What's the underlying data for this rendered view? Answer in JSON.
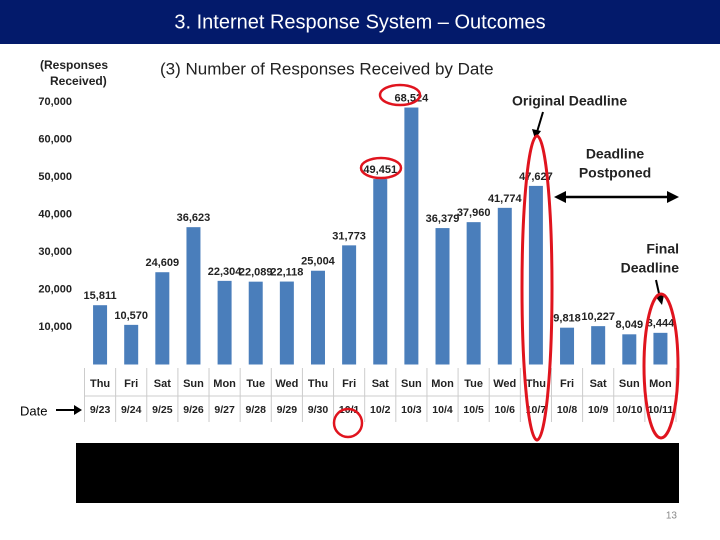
{
  "header": {
    "title": "3.  Internet Response System – Outcomes"
  },
  "chart_data": {
    "type": "bar",
    "title": "(3) Number of Responses Received by Date",
    "y_label": [
      "(Responses",
      "Received)"
    ],
    "x_label": "Date",
    "weekdays": [
      "Thu",
      "Fri",
      "Sat",
      "Sun",
      "Mon",
      "Tue",
      "Wed",
      "Thu",
      "Fri",
      "Sat",
      "Sun",
      "Mon",
      "Tue",
      "Wed",
      "Thu",
      "Fri",
      "Sat",
      "Sun",
      "Mon"
    ],
    "categories": [
      "9/23",
      "9/24",
      "9/25",
      "9/26",
      "9/27",
      "9/28",
      "9/29",
      "9/30",
      "10/1",
      "10/2",
      "10/3",
      "10/4",
      "10/5",
      "10/6",
      "10/7",
      "10/8",
      "10/9",
      "10/10",
      "10/11"
    ],
    "values": [
      15811,
      10570,
      24609,
      36623,
      22304,
      22089,
      22118,
      25004,
      31773,
      49451,
      68524,
      36379,
      37960,
      41774,
      47627,
      9818,
      10227,
      8049,
      8444
    ],
    "value_labels": [
      "15,811",
      "10,570",
      "24,609",
      "36,623",
      "22,304",
      "22,089",
      "22,118",
      "25,004",
      "31,773",
      "49,451",
      "68,524",
      "36,379",
      "37,960",
      "41,774",
      "47,627",
      "9,818",
      "10,227",
      "8,049",
      "8,444"
    ],
    "color": "#4a7ebb",
    "ylim": [
      0,
      70000
    ],
    "yticks": [
      {
        "value": 10000,
        "label": "10,000"
      },
      {
        "value": 20000,
        "label": "20,000"
      },
      {
        "value": 30000,
        "label": "30,000"
      },
      {
        "value": 40000,
        "label": "40,000"
      },
      {
        "value": 50000,
        "label": "50,000"
      },
      {
        "value": 60000,
        "label": "60,000"
      },
      {
        "value": 70000,
        "label": "70,000"
      }
    ],
    "grid": false,
    "annotations": [
      {
        "lines": [
          "Original Deadline"
        ]
      },
      {
        "lines": [
          "Deadline",
          "Postponed"
        ]
      },
      {
        "lines": [
          "Final",
          "Deadline"
        ]
      }
    ]
  },
  "footer": {
    "page": "13"
  }
}
